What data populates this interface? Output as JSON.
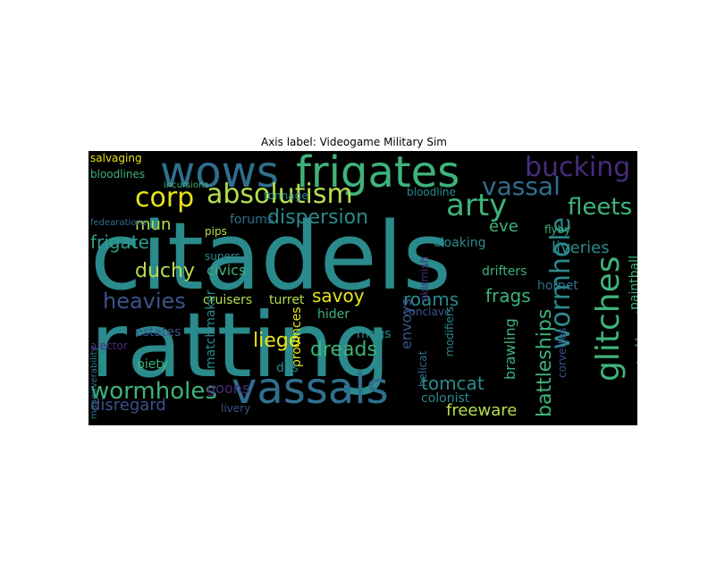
{
  "title": "Axis label: Videogame Military Sim",
  "colors": {
    "background": "#000000",
    "teal": "#2a8a8c",
    "green": "#3eb37a",
    "lime": "#b7de4d",
    "yellow": "#e7e419",
    "purple": "#472c7a",
    "blue": "#3a548c",
    "darkblue": "#2f3c7e"
  },
  "words": [
    {
      "text": "citadels",
      "color": "#2a8a8c"
    },
    {
      "text": "ratting",
      "color": "#2a8a8c"
    },
    {
      "text": "frigates",
      "color": "#3eb37a"
    },
    {
      "text": "wows",
      "color": "#2f6f8e"
    },
    {
      "text": "vassals",
      "color": "#2f6f8e"
    },
    {
      "text": "bucking",
      "color": "#472c7a"
    },
    {
      "text": "absolutism",
      "color": "#b7de4d"
    },
    {
      "text": "corp",
      "color": "#e7e419"
    },
    {
      "text": "vassal",
      "color": "#2f6f8e"
    },
    {
      "text": "arty",
      "color": "#3eb37a"
    },
    {
      "text": "fleets",
      "color": "#3eb37a"
    },
    {
      "text": "dispersion",
      "color": "#2a8a8c"
    },
    {
      "text": "wormholes",
      "color": "#3eb37a"
    },
    {
      "text": "wormhole",
      "color": "#2a8a8c"
    },
    {
      "text": "glitches",
      "color": "#3eb37a"
    },
    {
      "text": "battleships",
      "color": "#3eb37a"
    },
    {
      "text": "tributary",
      "color": "#2f6f8e"
    },
    {
      "text": "heavies",
      "color": "#3a548c"
    },
    {
      "text": "duchy",
      "color": "#b7de4d"
    },
    {
      "text": "frigate",
      "color": "#2f9c8a"
    },
    {
      "text": "mun",
      "color": "#b7de4d"
    },
    {
      "text": "liveries",
      "color": "#2a8a8c"
    },
    {
      "text": "eve",
      "color": "#3eb37a"
    },
    {
      "text": "frags",
      "color": "#3eb37a"
    },
    {
      "text": "roams",
      "color": "#2a8a8c"
    },
    {
      "text": "savoy",
      "color": "#e7e419"
    },
    {
      "text": "liege",
      "color": "#e7e419"
    },
    {
      "text": "dreads",
      "color": "#3eb37a"
    },
    {
      "text": "tomcat",
      "color": "#2a8a8c"
    },
    {
      "text": "freeware",
      "color": "#b7de4d"
    },
    {
      "text": "disregard",
      "color": "#3a548c"
    },
    {
      "text": "goons",
      "color": "#472c7a"
    },
    {
      "text": "salvaging",
      "color": "#e7e419"
    },
    {
      "text": "bloodlines",
      "color": "#3eb37a"
    },
    {
      "text": "bloodline",
      "color": "#2a8a8c"
    },
    {
      "text": "forums",
      "color": "#2f6f8e"
    },
    {
      "text": "cloaking",
      "color": "#2a8a8c"
    },
    {
      "text": "drifters",
      "color": "#3eb37a"
    },
    {
      "text": "hornet",
      "color": "#2f6f8e"
    },
    {
      "text": "paintball",
      "color": "#3eb37a"
    },
    {
      "text": "civics",
      "color": "#3eb37a"
    },
    {
      "text": "supers",
      "color": "#2a8a8c"
    },
    {
      "text": "cruisers",
      "color": "#b7de4d"
    },
    {
      "text": "turret",
      "color": "#b7de4d"
    },
    {
      "text": "hider",
      "color": "#3eb37a"
    },
    {
      "text": "envoys",
      "color": "#3a548c"
    },
    {
      "text": "mags",
      "color": "#2a8a8c"
    },
    {
      "text": "brawling",
      "color": "#3eb37a"
    },
    {
      "text": "corvettes",
      "color": "#3a548c"
    },
    {
      "text": "colonist",
      "color": "#2a8a8c"
    },
    {
      "text": "piety",
      "color": "#3eb37a"
    },
    {
      "text": "estates",
      "color": "#3a548c"
    },
    {
      "text": "matchmaker",
      "color": "#2a8a8c"
    },
    {
      "text": "provinces",
      "color": "#e7e419"
    },
    {
      "text": "dds",
      "color": "#2a8a8c"
    },
    {
      "text": "livery",
      "color": "#3a548c"
    },
    {
      "text": "conclave",
      "color": "#3a548c"
    },
    {
      "text": "fedearations",
      "color": "#2f6f8e"
    },
    {
      "text": "pips",
      "color": "#b7de4d"
    },
    {
      "text": "incursions",
      "color": "#3eb37a"
    },
    {
      "text": "tonnage",
      "color": "#2a8a8c"
    },
    {
      "text": "maneuverability",
      "color": "#2f6f8e"
    },
    {
      "text": "alector",
      "color": "#472c7a"
    },
    {
      "text": "flyby",
      "color": "#3eb37a"
    },
    {
      "text": "skirmish",
      "color": "#472c7a"
    },
    {
      "text": "modifiers",
      "color": "#2a8a8c"
    },
    {
      "text": "helicat",
      "color": "#2f6f8e"
    }
  ]
}
